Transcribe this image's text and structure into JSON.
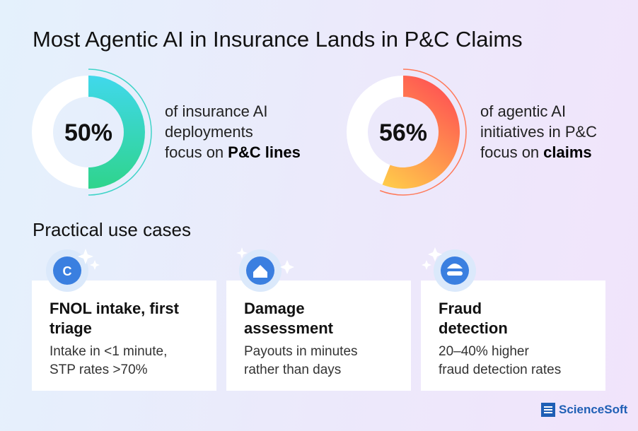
{
  "header": {
    "title": "Most Agentic AI in Insurance Lands in P&C Claims"
  },
  "stats": [
    {
      "value": 50,
      "value_label": "50%",
      "lines": [
        "of insurance AI",
        "deployments"
      ],
      "lead": "focus on",
      "emphasis": "P&C lines"
    },
    {
      "value": 56,
      "value_label": "56%",
      "lines": [
        "of agentic AI",
        "initiatives in P&C"
      ],
      "lead": "focus on",
      "emphasis": "claims"
    }
  ],
  "section": {
    "title": "Practical use cases"
  },
  "cards": [
    {
      "title_lines": [
        "FNOL intake, first",
        "triage"
      ],
      "text_lines": [
        "Intake in <1 minute,",
        "STP rates >70%"
      ]
    },
    {
      "title_lines": [
        "Damage",
        "assessment"
      ],
      "text_lines": [
        "Payouts in minutes",
        "rather than days"
      ]
    },
    {
      "title_lines": [
        "Fraud",
        "detection"
      ],
      "text_lines": [
        "20–40% higher",
        "fraud detection rates"
      ]
    }
  ],
  "logo": {
    "text": "ScienceSoft"
  }
}
